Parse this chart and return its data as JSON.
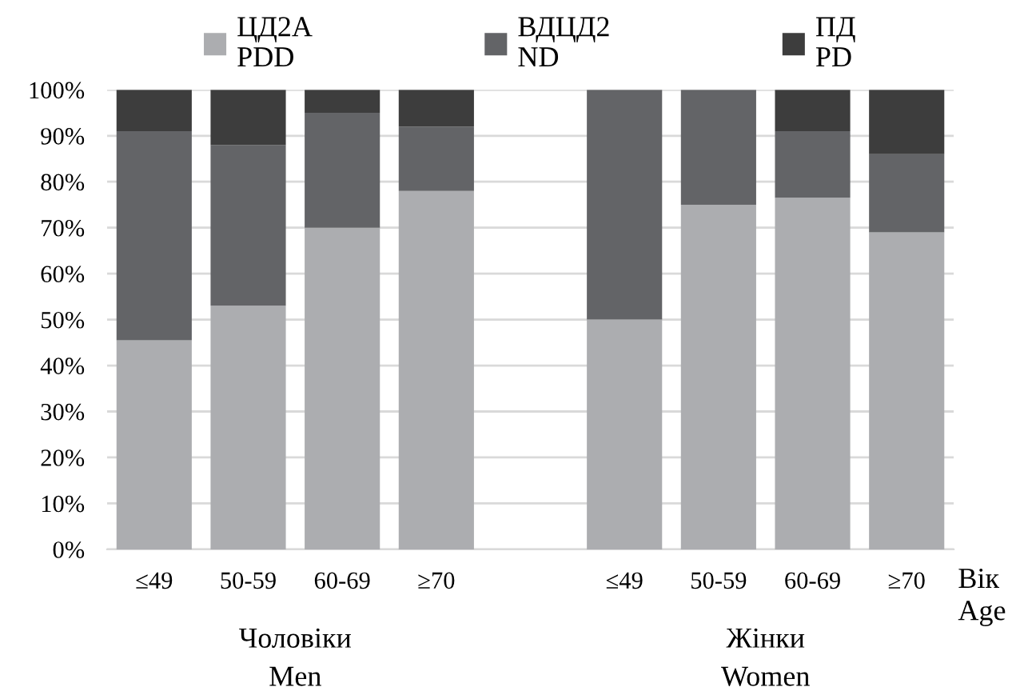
{
  "chart_data": {
    "type": "bar",
    "stacked": true,
    "categories": [
      "≤49",
      "50-59",
      "60-69",
      "≥70",
      null,
      "≤49",
      "50-59",
      "60-69",
      "≥70"
    ],
    "series": [
      {
        "name": "ЦД2А\nPDD",
        "color": "#acadb0",
        "values": [
          45.5,
          53,
          70,
          78,
          null,
          50,
          75,
          76.5,
          69
        ]
      },
      {
        "name": "ВДЦД2\nND",
        "color": "#636467",
        "values": [
          45.5,
          35,
          25,
          14,
          null,
          50,
          25,
          14.5,
          17
        ]
      },
      {
        "name": "ПД\nPD",
        "color": "#3d3d3d",
        "values": [
          9,
          12,
          5,
          8,
          null,
          0,
          0,
          9,
          14
        ]
      }
    ],
    "xlabel": "Вік\nAge",
    "annotations": [
      "Чоловіки\nMen",
      "Жінки\nWomen"
    ],
    "ylim": [
      0,
      100
    ],
    "yticks": [
      {
        "value": 0,
        "label": "0%"
      },
      {
        "value": 10,
        "label": "10%"
      },
      {
        "value": 20,
        "label": "20%"
      },
      {
        "value": 30,
        "label": "30%"
      },
      {
        "value": 40,
        "label": "40%"
      },
      {
        "value": 50,
        "label": "50%"
      },
      {
        "value": 60,
        "label": "60%"
      },
      {
        "value": 70,
        "label": "70%"
      },
      {
        "value": 80,
        "label": "80%"
      },
      {
        "value": 90,
        "label": "90%"
      },
      {
        "value": 100,
        "label": "100%"
      }
    ],
    "grid": "y",
    "legend": "top"
  }
}
